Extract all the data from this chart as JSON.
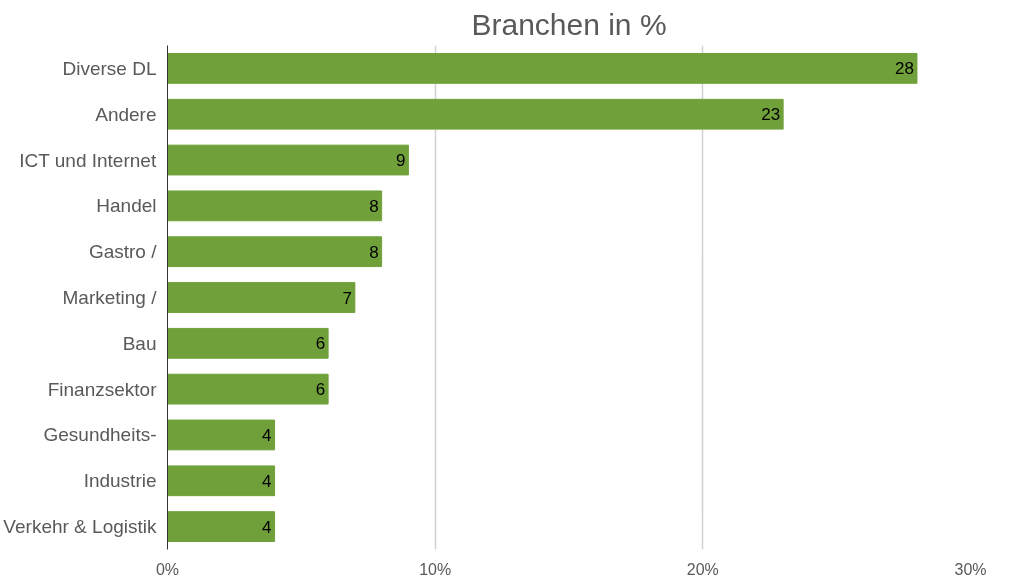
{
  "chart_data": {
    "type": "bar",
    "orientation": "horizontal",
    "title": "Branchen in %",
    "categories": [
      "Diverse DL",
      "Andere",
      "ICT und Internet",
      "Handel",
      "Gastro /",
      "Marketing /",
      "Bau",
      "Finanzsektor",
      "Gesundheits-",
      "Industrie",
      "Verkehr & Logistik"
    ],
    "values": [
      28,
      23,
      9,
      8,
      8,
      7,
      6,
      6,
      4,
      4,
      4
    ],
    "color": "#70a03a",
    "xlim": [
      0,
      30
    ],
    "xticks": [
      {
        "value": 0,
        "label": "0%"
      },
      {
        "value": 10,
        "label": "10%"
      },
      {
        "value": 20,
        "label": "20%"
      },
      {
        "value": 30,
        "label": "30%"
      }
    ],
    "grid": "x",
    "data_labels": true
  }
}
